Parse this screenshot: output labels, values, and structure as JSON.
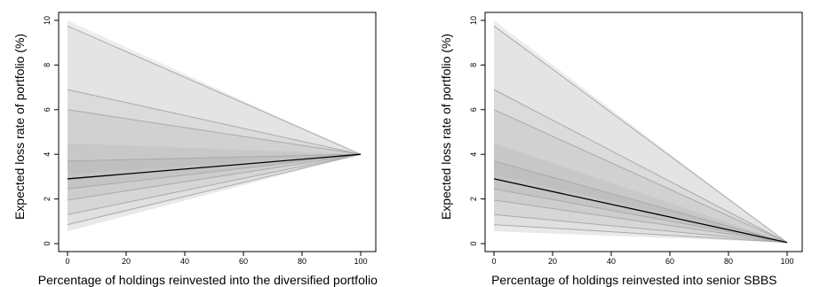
{
  "chart_data": [
    {
      "type": "area",
      "title": "",
      "xlabel": "Percentage of holdings reinvested into the diversified portfolio",
      "ylabel": "Expected loss rate of portfolio (%)",
      "xlim": [
        0,
        100
      ],
      "ylim": [
        0,
        10
      ],
      "x_ticks": [
        "0",
        "20",
        "40",
        "60",
        "80",
        "100"
      ],
      "y_ticks": [
        "0",
        "2",
        "4",
        "6",
        "8",
        "10"
      ],
      "grid": false,
      "endpoint_y": 4.0,
      "highlight_start_y": 2.9,
      "series_start_y": [
        9.75,
        6.9,
        6.0,
        3.7,
        2.9,
        2.45,
        1.95,
        1.3,
        0.85
      ],
      "band_start_y": [
        10.0,
        9.75,
        6.9,
        6.0,
        4.5,
        3.7,
        3.1,
        2.45,
        1.95,
        1.3,
        0.85,
        0.55
      ],
      "colors": {
        "line": "#aaaaaa",
        "highlight": "#000000"
      }
    },
    {
      "type": "area",
      "title": "",
      "xlabel": "Percentage of holdings reinvested into senior SBBS",
      "ylabel": "Expected loss rate of portfolio (%)",
      "xlim": [
        0,
        100
      ],
      "ylim": [
        0,
        10
      ],
      "x_ticks": [
        "0",
        "20",
        "40",
        "60",
        "80",
        "100"
      ],
      "y_ticks": [
        "0",
        "2",
        "4",
        "6",
        "8",
        "10"
      ],
      "grid": false,
      "endpoint_y": 0.05,
      "highlight_start_y": 2.9,
      "series_start_y": [
        9.75,
        6.9,
        6.0,
        3.7,
        2.9,
        2.45,
        1.95,
        1.3,
        0.85
      ],
      "band_start_y": [
        10.0,
        9.75,
        6.9,
        6.0,
        4.5,
        3.7,
        3.1,
        2.45,
        1.95,
        1.3,
        0.85,
        0.55
      ],
      "colors": {
        "line": "#aaaaaa",
        "highlight": "#000000"
      }
    }
  ]
}
